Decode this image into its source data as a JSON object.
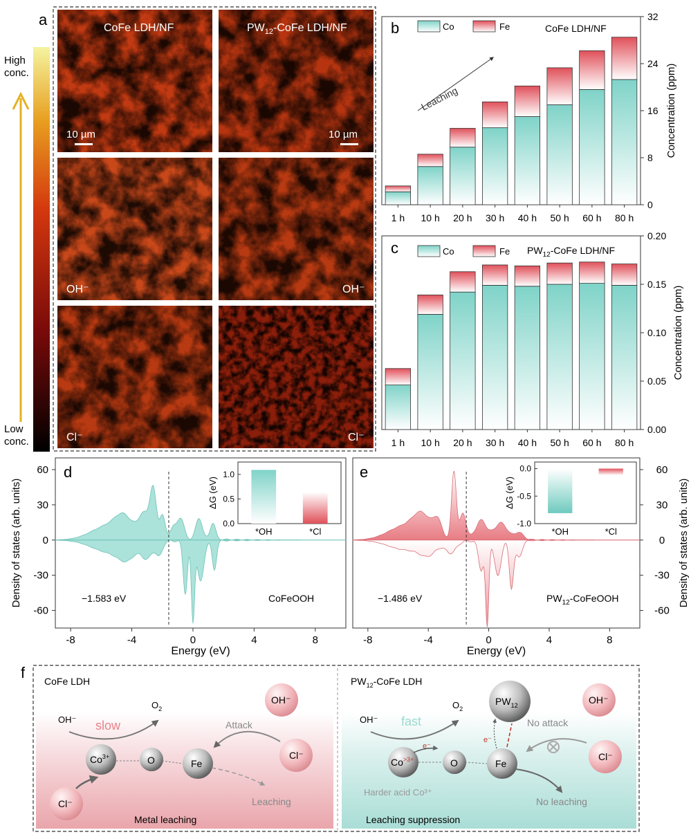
{
  "panel_labels": {
    "a": "a",
    "b": "b",
    "c": "c",
    "d": "d",
    "e": "e",
    "f": "f"
  },
  "panel_a": {
    "colorbar_high": [
      "High",
      "conc."
    ],
    "colorbar_low": [
      "Low",
      "conc."
    ],
    "col_titles": [
      "CoFe LDH/NF",
      "PW",
      "12",
      "-CoFe LDH/NF"
    ],
    "scalebar": "10 µm",
    "row_labels": [
      "OH⁻",
      "Cl⁻"
    ]
  },
  "chart_data": [
    {
      "id": "b",
      "type": "bar",
      "stacked": true,
      "title": "CoFe LDH/NF",
      "categories": [
        "1 h",
        "10 h",
        "20 h",
        "30 h",
        "40 h",
        "50 h",
        "60 h",
        "80 h"
      ],
      "series": [
        {
          "name": "Co",
          "values": [
            2.2,
            6.5,
            9.8,
            13.1,
            15.0,
            17.0,
            19.6,
            21.3
          ],
          "color": "#7fd3c8"
        },
        {
          "name": "Fe",
          "values": [
            1.0,
            2.1,
            3.2,
            4.4,
            5.2,
            6.3,
            6.6,
            7.2
          ],
          "color": "#e0505a"
        }
      ],
      "ylabel": "Concentration (ppm)",
      "ylim": [
        0,
        32
      ],
      "yticks": [
        0,
        8,
        16,
        24,
        32
      ],
      "annotation": "Leaching"
    },
    {
      "id": "c",
      "type": "bar",
      "stacked": true,
      "title": "PW12-CoFe LDH/NF",
      "categories": [
        "1 h",
        "10 h",
        "20 h",
        "30 h",
        "40 h",
        "50 h",
        "60 h",
        "80 h"
      ],
      "series": [
        {
          "name": "Co",
          "values": [
            0.046,
            0.119,
            0.142,
            0.149,
            0.148,
            0.15,
            0.151,
            0.149
          ],
          "color": "#7fd3c8"
        },
        {
          "name": "Fe",
          "values": [
            0.017,
            0.02,
            0.021,
            0.021,
            0.021,
            0.022,
            0.022,
            0.022
          ],
          "color": "#e0505a"
        }
      ],
      "ylabel": "Concentration (ppm)",
      "ylim": [
        0,
        0.2
      ],
      "yticks": [
        "0.00",
        "0.05",
        "0.10",
        "0.15",
        "0.20"
      ]
    },
    {
      "id": "d",
      "type": "area",
      "title": "CoFeOOH",
      "xlabel": "Energy (eV)",
      "ylabel": "Density of states (arb. units)",
      "xlim": [
        -9,
        10
      ],
      "xticks": [
        "-8",
        "-4",
        "0",
        "4",
        "8"
      ],
      "ylim": [
        -75,
        70
      ],
      "yticks": [
        "60",
        "30",
        "0",
        "-30",
        "-60"
      ],
      "fermi_label": "−1.583 eV",
      "fermi_value": -1.583,
      "up_peaks": [
        [
          -5.5,
          1.6,
          12
        ],
        [
          -4.5,
          0.8,
          14
        ],
        [
          -3.2,
          0.5,
          20
        ],
        [
          -2.6,
          0.3,
          40
        ],
        [
          -2.0,
          0.25,
          20
        ],
        [
          -0.8,
          0.3,
          18
        ],
        [
          0.4,
          0.3,
          18
        ],
        [
          1.3,
          0.25,
          14
        ],
        [
          -1.3,
          0.3,
          10
        ]
      ],
      "down_peaks": [
        [
          -5.5,
          1.6,
          10
        ],
        [
          -4.3,
          0.8,
          12
        ],
        [
          -3.0,
          0.5,
          14
        ],
        [
          -2.2,
          0.3,
          12
        ],
        [
          -0.5,
          0.2,
          45
        ],
        [
          0.0,
          0.15,
          68
        ],
        [
          0.5,
          0.3,
          35
        ],
        [
          1.4,
          0.2,
          25
        ]
      ],
      "inset": {
        "ylabel": "ΔG (eV)",
        "categories": [
          "*OH",
          "*Cl"
        ],
        "values": [
          1.09,
          0.64
        ],
        "ylim": [
          0,
          1.25
        ],
        "yticks": [
          "0.0",
          "0.5",
          "1.0"
        ],
        "colors": [
          "#7fd3c8",
          "#e0505a"
        ]
      }
    },
    {
      "id": "e",
      "type": "area",
      "title_parts": [
        "PW",
        "12",
        "-CoFeOOH"
      ],
      "xlabel": "Energy (eV)",
      "ylabel": "Density of states (arb. units)",
      "xlim": [
        -9,
        10
      ],
      "xticks": [
        "-8",
        "-4",
        "0",
        "4",
        "8"
      ],
      "ylim": [
        -75,
        70
      ],
      "yticks": [
        "60",
        "30",
        "0",
        "-30",
        "-60"
      ],
      "fermi_label": "−1.486 eV",
      "fermi_value": -1.486,
      "up_peaks": [
        [
          -5.5,
          1.6,
          12
        ],
        [
          -4.4,
          0.8,
          16
        ],
        [
          -3.4,
          0.4,
          14
        ],
        [
          -2.3,
          0.22,
          58
        ],
        [
          -1.7,
          0.3,
          22
        ],
        [
          -0.5,
          0.5,
          16
        ],
        [
          0.8,
          0.6,
          14
        ],
        [
          2.0,
          0.4,
          6
        ]
      ],
      "down_peaks": [
        [
          -5.5,
          1.6,
          8
        ],
        [
          -4.0,
          0.8,
          10
        ],
        [
          -2.5,
          0.5,
          10
        ],
        [
          -0.5,
          0.25,
          25
        ],
        [
          -0.1,
          0.15,
          72
        ],
        [
          0.6,
          0.3,
          30
        ],
        [
          1.5,
          0.2,
          40
        ],
        [
          2.0,
          0.3,
          14
        ]
      ],
      "inset": {
        "ylabel": "ΔG (eV)",
        "categories": [
          "*OH",
          "*Cl"
        ],
        "values": [
          -0.81,
          -0.12
        ],
        "ylim": [
          -1.0,
          0.12
        ],
        "yticks": [
          "0.0",
          "-0.5",
          "-1.0"
        ],
        "colors": [
          "#7fd3c8",
          "#e0505a"
        ]
      }
    }
  ],
  "panel_f": {
    "left_title": "CoFe LDH",
    "right_title": [
      "PW",
      "12",
      "-CoFe LDH"
    ],
    "left": {
      "oh": "OH⁻",
      "o2": [
        "O",
        "2"
      ],
      "slow": "slow",
      "attack": "Attack",
      "oh_ball": "OH⁻",
      "cl_ball": "Cl⁻",
      "co": [
        "Co",
        "3+"
      ],
      "o": "O",
      "fe": "Fe",
      "cl_bottom": "Cl⁻",
      "leaching": "Leaching",
      "caption": "Metal leaching"
    },
    "right": {
      "oh": "OH⁻",
      "o2": [
        "O",
        "2"
      ],
      "fast": "fast",
      "no_attack": "No attack",
      "pw": [
        "PW",
        "12"
      ],
      "oh_ball": "OH⁻",
      "cl_ball": "Cl⁻",
      "co": [
        "Co",
        ">3+"
      ],
      "o": "O",
      "fe": "Fe",
      "e1": "e⁻",
      "e2": "e⁻",
      "harder": "Harder acid Co³⁺",
      "no_leaching": "No leaching",
      "caption": "Leaching suppression"
    }
  },
  "colors": {
    "teal": "#7fd3c8",
    "red": "#e0505a",
    "pink_bg": "#e9a5ab",
    "teal_bg": "#a9ddd6"
  }
}
